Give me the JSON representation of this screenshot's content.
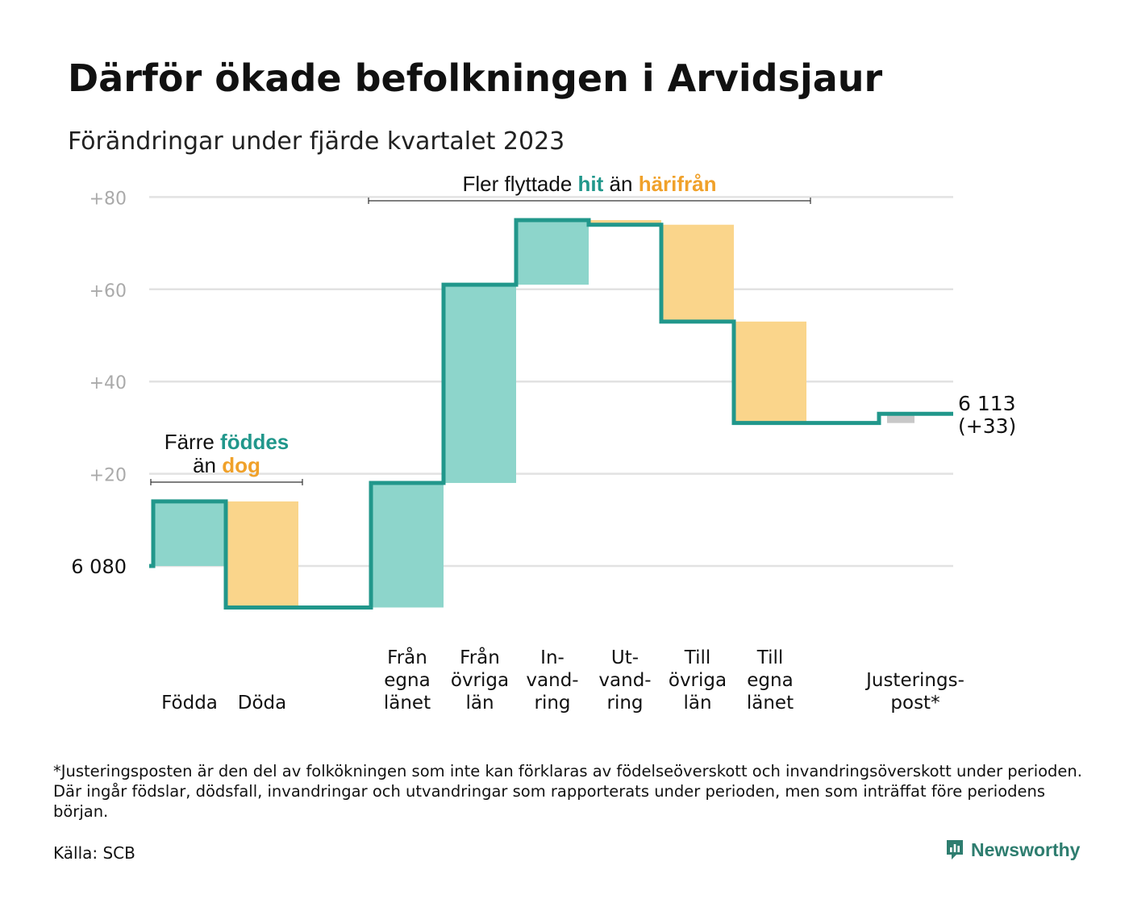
{
  "title": "Därför ökade befolkningen i Arvidsjaur",
  "subtitle": "Förändringar under fjärde kvartalet 2023",
  "footnote": "*Justeringsposten är den del av folkökningen som inte kan förklaras av födelseöverskott och invandringsöverskott under perioden. Där ingår födslar, dödsfall, invandringar och utvandringar som rapporterats under perioden, men som inträffat före periodens början.",
  "source": "Källa: SCB",
  "brand": "Newsworthy",
  "colors": {
    "increase": "#8dd5cb",
    "decrease": "#fad58b",
    "adjustment": "#c8c8c8",
    "line": "#21978b",
    "teal_text": "#21978b",
    "orange_text": "#f0a12a",
    "grid": "#e2e2e2",
    "tick": "#aaaaaa"
  },
  "chart_data": {
    "type": "waterfall",
    "ylim": [
      -9,
      82
    ],
    "yticks": [
      "+20",
      "+40",
      "+60",
      "+80"
    ],
    "ytick_values": [
      20,
      40,
      60,
      80
    ],
    "start_label": "6  080",
    "start_value": 0,
    "end_label": "6 113",
    "end_change_label": "(+33)",
    "end_value": 33,
    "steps": [
      {
        "label": [
          "Födda"
        ],
        "value": 14,
        "kind": "increase"
      },
      {
        "label": [
          "Döda"
        ],
        "value": -23,
        "kind": "decrease"
      },
      {
        "label": [],
        "value": 0,
        "kind": "gap"
      },
      {
        "label": [
          "Från",
          "egna",
          "länet"
        ],
        "value": 27,
        "kind": "increase"
      },
      {
        "label": [
          "Från",
          "övriga",
          "län"
        ],
        "value": 43,
        "kind": "increase"
      },
      {
        "label": [
          "In-",
          "vand-",
          "ring"
        ],
        "value": 14,
        "kind": "increase"
      },
      {
        "label": [
          "Ut-",
          "vand-",
          "ring"
        ],
        "value": -1,
        "kind": "decrease"
      },
      {
        "label": [
          "Till",
          "övriga",
          "län"
        ],
        "value": -21,
        "kind": "decrease"
      },
      {
        "label": [
          "Till",
          "egna",
          "länet"
        ],
        "value": -22,
        "kind": "decrease"
      },
      {
        "label": [],
        "value": 0,
        "kind": "gap"
      },
      {
        "label": [
          "Justerings-",
          "post*"
        ],
        "value": 2,
        "kind": "adjustment"
      }
    ],
    "annotations": [
      {
        "lines": [
          [
            {
              "text": "Färre ",
              "color": "dark"
            },
            {
              "text": "föddes",
              "color": "teal"
            }
          ],
          [
            {
              "text": "än ",
              "color": "dark"
            },
            {
              "text": "dog",
              "color": "orange"
            }
          ]
        ],
        "span_steps": [
          0,
          1
        ]
      },
      {
        "lines": [
          [
            {
              "text": "Fler flyttade ",
              "color": "dark"
            },
            {
              "text": "hit",
              "color": "teal"
            },
            {
              "text": " än ",
              "color": "dark"
            },
            {
              "text": "härifrån",
              "color": "orange"
            }
          ]
        ],
        "span_steps": [
          3,
          8
        ]
      }
    ]
  }
}
